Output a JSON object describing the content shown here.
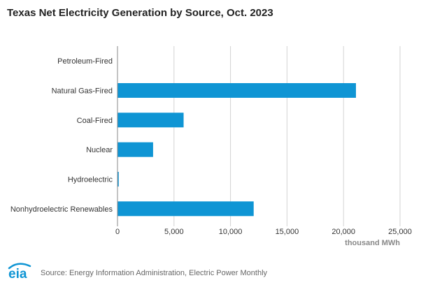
{
  "title": "Texas Net Electricity Generation by Source, Oct. 2023",
  "source": "Source: Energy Information Administration, Electric Power Monthly",
  "logo_text": "eia",
  "colors": {
    "bar": "#0f95d4",
    "grid": "#d3d3d3",
    "axis": "#888888",
    "logo": "#0f95d4"
  },
  "chart_data": {
    "type": "bar",
    "orientation": "horizontal",
    "title": "Texas Net Electricity Generation by Source, Oct. 2023",
    "xlabel": "thousand MWh",
    "ylabel": "",
    "categories": [
      "Petroleum-Fired",
      "Natural Gas-Fired",
      "Coal-Fired",
      "Nuclear",
      "Hydroelectric",
      "Nonhydroelectric Renewables"
    ],
    "values": [
      10,
      21100,
      5850,
      3150,
      110,
      12050
    ],
    "xlim": [
      0,
      25000
    ],
    "xticks": [
      0,
      5000,
      10000,
      15000,
      20000,
      25000
    ],
    "xtick_labels": [
      "0",
      "5,000",
      "10,000",
      "15,000",
      "20,000",
      "25,000"
    ],
    "grid": true,
    "legend": "none"
  }
}
